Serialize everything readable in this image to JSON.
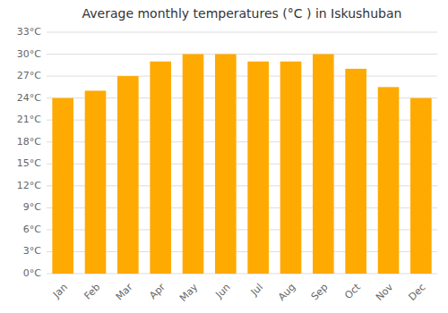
{
  "chart_data": {
    "type": "bar",
    "title": "Average monthly temperatures (°C ) in Iskushuban",
    "categories": [
      "Jan",
      "Feb",
      "Mar",
      "Apr",
      "May",
      "Jun",
      "Jul",
      "Aug",
      "Sep",
      "Oct",
      "Nov",
      "Dec"
    ],
    "values": [
      24,
      25,
      27,
      29,
      30,
      30,
      29,
      29,
      30,
      28,
      25.5,
      24
    ],
    "color": "#FFAA00",
    "ylim": [
      0,
      33
    ],
    "yticks": [
      {
        "value": 0,
        "label": "0°C"
      },
      {
        "value": 3,
        "label": "3°C"
      },
      {
        "value": 6,
        "label": "6°C"
      },
      {
        "value": 9,
        "label": "9°C"
      },
      {
        "value": 12,
        "label": "12°C"
      },
      {
        "value": 15,
        "label": "15°C"
      },
      {
        "value": 18,
        "label": "18°C"
      },
      {
        "value": 21,
        "label": "21°C"
      },
      {
        "value": 24,
        "label": "24°C"
      },
      {
        "value": 27,
        "label": "27°C"
      },
      {
        "value": 30,
        "label": "30°C"
      },
      {
        "value": 33,
        "label": "33°C"
      }
    ],
    "grid": true
  }
}
